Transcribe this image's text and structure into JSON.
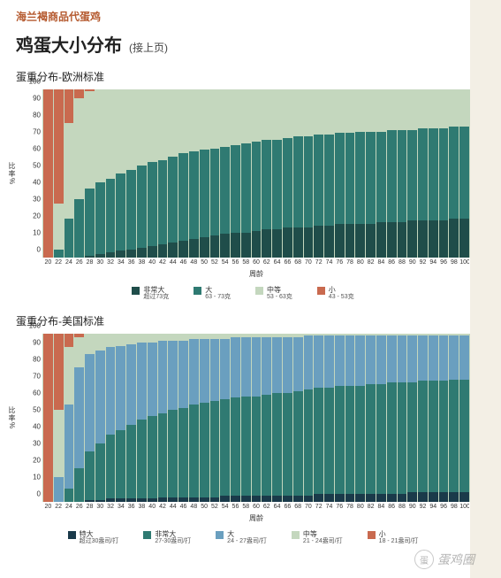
{
  "colors": {
    "breadcrumb": "#b55a2f",
    "page_bg": "#ffffff",
    "right_band": "#f3efe5",
    "chart_bg": "#c4d7be"
  },
  "breadcrumb": "海兰褐商品代蛋鸡",
  "title": "鸡蛋大小分布",
  "subtitle": "(接上页)",
  "watermark": "蛋鸡圈",
  "x_categories": [
    20,
    22,
    24,
    26,
    28,
    30,
    32,
    34,
    36,
    38,
    40,
    42,
    44,
    46,
    48,
    50,
    52,
    54,
    56,
    58,
    60,
    62,
    64,
    66,
    68,
    70,
    72,
    74,
    76,
    78,
    80,
    82,
    84,
    86,
    88,
    90,
    92,
    94,
    96,
    98,
    100
  ],
  "x_label": "周龄",
  "y_ticks": [
    0,
    10,
    20,
    30,
    40,
    50,
    60,
    70,
    80,
    90,
    100
  ],
  "y_label": "比率%",
  "chart_eu": {
    "title": "蛋重分布-欧洲标准",
    "series_colors": {
      "xl": "#1f4d4a",
      "l": "#2f7a72",
      "m": "#c4d7be",
      "s": "#c96a4f"
    },
    "legend": [
      {
        "key": "xl",
        "label": "非常大",
        "sub": "超过73克"
      },
      {
        "key": "l",
        "label": "大",
        "sub": "63 - 73克"
      },
      {
        "key": "m",
        "label": "中等",
        "sub": "53 - 63克"
      },
      {
        "key": "s",
        "label": "小",
        "sub": "43 - 53克"
      }
    ],
    "stacks": [
      {
        "s": 100,
        "m": 0,
        "l": 0,
        "xl": 0
      },
      {
        "s": 68,
        "m": 27,
        "l": 5,
        "xl": 0
      },
      {
        "s": 20,
        "m": 57,
        "l": 23,
        "xl": 0
      },
      {
        "s": 5,
        "m": 60,
        "l": 35,
        "xl": 0
      },
      {
        "s": 1,
        "m": 58,
        "l": 40,
        "xl": 1
      },
      {
        "s": 0,
        "m": 55,
        "l": 43,
        "xl": 2
      },
      {
        "s": 0,
        "m": 53,
        "l": 44,
        "xl": 3
      },
      {
        "s": 0,
        "m": 50,
        "l": 46,
        "xl": 4
      },
      {
        "s": 0,
        "m": 48,
        "l": 47,
        "xl": 5
      },
      {
        "s": 0,
        "m": 45,
        "l": 49,
        "xl": 6
      },
      {
        "s": 0,
        "m": 43,
        "l": 50,
        "xl": 7
      },
      {
        "s": 0,
        "m": 42,
        "l": 50,
        "xl": 8
      },
      {
        "s": 0,
        "m": 40,
        "l": 51,
        "xl": 9
      },
      {
        "s": 0,
        "m": 38,
        "l": 52,
        "xl": 10
      },
      {
        "s": 0,
        "m": 37,
        "l": 52,
        "xl": 11
      },
      {
        "s": 0,
        "m": 36,
        "l": 52,
        "xl": 12
      },
      {
        "s": 0,
        "m": 35,
        "l": 52,
        "xl": 13
      },
      {
        "s": 0,
        "m": 34,
        "l": 52,
        "xl": 14
      },
      {
        "s": 0,
        "m": 33,
        "l": 52,
        "xl": 15
      },
      {
        "s": 0,
        "m": 32,
        "l": 53,
        "xl": 15
      },
      {
        "s": 0,
        "m": 31,
        "l": 53,
        "xl": 16
      },
      {
        "s": 0,
        "m": 30,
        "l": 53,
        "xl": 17
      },
      {
        "s": 0,
        "m": 30,
        "l": 53,
        "xl": 17
      },
      {
        "s": 0,
        "m": 29,
        "l": 53,
        "xl": 18
      },
      {
        "s": 0,
        "m": 28,
        "l": 54,
        "xl": 18
      },
      {
        "s": 0,
        "m": 28,
        "l": 54,
        "xl": 18
      },
      {
        "s": 0,
        "m": 27,
        "l": 54,
        "xl": 19
      },
      {
        "s": 0,
        "m": 27,
        "l": 54,
        "xl": 19
      },
      {
        "s": 0,
        "m": 26,
        "l": 54,
        "xl": 20
      },
      {
        "s": 0,
        "m": 26,
        "l": 54,
        "xl": 20
      },
      {
        "s": 0,
        "m": 25,
        "l": 55,
        "xl": 20
      },
      {
        "s": 0,
        "m": 25,
        "l": 55,
        "xl": 20
      },
      {
        "s": 0,
        "m": 25,
        "l": 54,
        "xl": 21
      },
      {
        "s": 0,
        "m": 24,
        "l": 55,
        "xl": 21
      },
      {
        "s": 0,
        "m": 24,
        "l": 55,
        "xl": 21
      },
      {
        "s": 0,
        "m": 24,
        "l": 54,
        "xl": 22
      },
      {
        "s": 0,
        "m": 23,
        "l": 55,
        "xl": 22
      },
      {
        "s": 0,
        "m": 23,
        "l": 55,
        "xl": 22
      },
      {
        "s": 0,
        "m": 23,
        "l": 55,
        "xl": 22
      },
      {
        "s": 0,
        "m": 22,
        "l": 55,
        "xl": 23
      },
      {
        "s": 0,
        "m": 22,
        "l": 55,
        "xl": 23
      }
    ],
    "stack_order": [
      "xl",
      "l",
      "m",
      "s"
    ]
  },
  "chart_us": {
    "title": "蛋重分布-美国标准",
    "series_colors": {
      "jumbo": "#1a3a4a",
      "xl": "#2f7a72",
      "l": "#6a9fbf",
      "m": "#c4d7be",
      "s": "#c96a4f"
    },
    "legend": [
      {
        "key": "jumbo",
        "label": "特大",
        "sub": "超过30盎司/打"
      },
      {
        "key": "xl",
        "label": "非常大",
        "sub": "27-30盎司/打"
      },
      {
        "key": "l",
        "label": "大",
        "sub": "24 - 27盎司/打"
      },
      {
        "key": "m",
        "label": "中等",
        "sub": "21 - 24盎司/打"
      },
      {
        "key": "s",
        "label": "小",
        "sub": "18 - 21盎司/打"
      }
    ],
    "stacks": [
      {
        "s": 100,
        "m": 0,
        "l": 0,
        "xl": 0,
        "jumbo": 0
      },
      {
        "s": 45,
        "m": 40,
        "l": 15,
        "xl": 0,
        "jumbo": 0
      },
      {
        "s": 8,
        "m": 34,
        "l": 50,
        "xl": 8,
        "jumbo": 0
      },
      {
        "s": 2,
        "m": 18,
        "l": 60,
        "xl": 20,
        "jumbo": 0
      },
      {
        "s": 0,
        "m": 12,
        "l": 58,
        "xl": 29,
        "jumbo": 1
      },
      {
        "s": 0,
        "m": 10,
        "l": 55,
        "xl": 34,
        "jumbo": 1
      },
      {
        "s": 0,
        "m": 8,
        "l": 52,
        "xl": 38,
        "jumbo": 2
      },
      {
        "s": 0,
        "m": 7,
        "l": 50,
        "xl": 41,
        "jumbo": 2
      },
      {
        "s": 0,
        "m": 6,
        "l": 48,
        "xl": 44,
        "jumbo": 2
      },
      {
        "s": 0,
        "m": 5,
        "l": 46,
        "xl": 47,
        "jumbo": 2
      },
      {
        "s": 0,
        "m": 5,
        "l": 44,
        "xl": 49,
        "jumbo": 2
      },
      {
        "s": 0,
        "m": 4,
        "l": 43,
        "xl": 50,
        "jumbo": 3
      },
      {
        "s": 0,
        "m": 4,
        "l": 41,
        "xl": 52,
        "jumbo": 3
      },
      {
        "s": 0,
        "m": 4,
        "l": 40,
        "xl": 53,
        "jumbo": 3
      },
      {
        "s": 0,
        "m": 3,
        "l": 39,
        "xl": 55,
        "jumbo": 3
      },
      {
        "s": 0,
        "m": 3,
        "l": 38,
        "xl": 56,
        "jumbo": 3
      },
      {
        "s": 0,
        "m": 3,
        "l": 37,
        "xl": 57,
        "jumbo": 3
      },
      {
        "s": 0,
        "m": 3,
        "l": 36,
        "xl": 57,
        "jumbo": 4
      },
      {
        "s": 0,
        "m": 2,
        "l": 36,
        "xl": 58,
        "jumbo": 4
      },
      {
        "s": 0,
        "m": 2,
        "l": 35,
        "xl": 59,
        "jumbo": 4
      },
      {
        "s": 0,
        "m": 2,
        "l": 35,
        "xl": 59,
        "jumbo": 4
      },
      {
        "s": 0,
        "m": 2,
        "l": 34,
        "xl": 60,
        "jumbo": 4
      },
      {
        "s": 0,
        "m": 2,
        "l": 33,
        "xl": 61,
        "jumbo": 4
      },
      {
        "s": 0,
        "m": 2,
        "l": 33,
        "xl": 61,
        "jumbo": 4
      },
      {
        "s": 0,
        "m": 2,
        "l": 32,
        "xl": 62,
        "jumbo": 4
      },
      {
        "s": 0,
        "m": 1,
        "l": 32,
        "xl": 63,
        "jumbo": 4
      },
      {
        "s": 0,
        "m": 1,
        "l": 31,
        "xl": 63,
        "jumbo": 5
      },
      {
        "s": 0,
        "m": 1,
        "l": 31,
        "xl": 63,
        "jumbo": 5
      },
      {
        "s": 0,
        "m": 1,
        "l": 30,
        "xl": 64,
        "jumbo": 5
      },
      {
        "s": 0,
        "m": 1,
        "l": 30,
        "xl": 64,
        "jumbo": 5
      },
      {
        "s": 0,
        "m": 1,
        "l": 30,
        "xl": 64,
        "jumbo": 5
      },
      {
        "s": 0,
        "m": 1,
        "l": 29,
        "xl": 65,
        "jumbo": 5
      },
      {
        "s": 0,
        "m": 1,
        "l": 29,
        "xl": 65,
        "jumbo": 5
      },
      {
        "s": 0,
        "m": 1,
        "l": 28,
        "xl": 66,
        "jumbo": 5
      },
      {
        "s": 0,
        "m": 1,
        "l": 28,
        "xl": 66,
        "jumbo": 5
      },
      {
        "s": 0,
        "m": 1,
        "l": 28,
        "xl": 65,
        "jumbo": 6
      },
      {
        "s": 0,
        "m": 1,
        "l": 27,
        "xl": 66,
        "jumbo": 6
      },
      {
        "s": 0,
        "m": 1,
        "l": 27,
        "xl": 66,
        "jumbo": 6
      },
      {
        "s": 0,
        "m": 1,
        "l": 27,
        "xl": 66,
        "jumbo": 6
      },
      {
        "s": 0,
        "m": 1,
        "l": 26,
        "xl": 67,
        "jumbo": 6
      },
      {
        "s": 0,
        "m": 1,
        "l": 26,
        "xl": 67,
        "jumbo": 6
      }
    ],
    "stack_order": [
      "jumbo",
      "xl",
      "l",
      "m",
      "s"
    ]
  }
}
